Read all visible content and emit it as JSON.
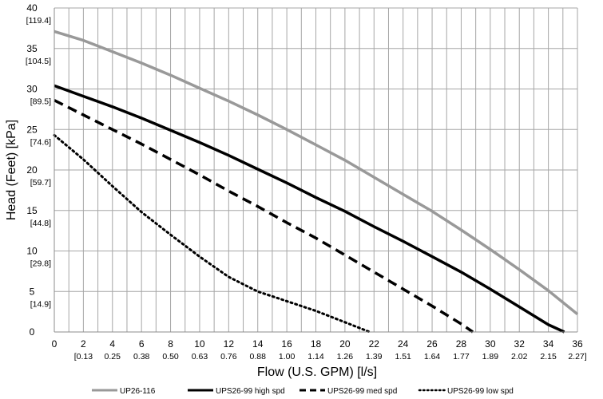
{
  "chart_data": {
    "type": "line",
    "xlabel": "Flow (U.S. GPM) [l/s]",
    "ylabel": "Head (Feet) [kPa]",
    "xlim": [
      0,
      36
    ],
    "ylim": [
      0,
      40
    ],
    "x_ticks": [
      0,
      2,
      4,
      6,
      8,
      10,
      12,
      14,
      16,
      18,
      20,
      22,
      24,
      26,
      28,
      30,
      32,
      34,
      36
    ],
    "x_secondary_labels": [
      "",
      "[0.13",
      "0.25",
      "0.38",
      "0.50",
      "0.63",
      "0.76",
      "0.88",
      "1.00",
      "1.14",
      "1.26",
      "1.39",
      "1.51",
      "1.64",
      "1.77",
      "1.89",
      "2.02",
      "2.15",
      "2.27]"
    ],
    "y_ticks": [
      0,
      5,
      10,
      15,
      20,
      25,
      30,
      35,
      40
    ],
    "y_secondary_labels": [
      "",
      "[14.9]",
      "[29.8]",
      "[44.8]",
      "[59.7]",
      "[74.6]",
      "[89.5]",
      "[104.5]",
      "[119.4]"
    ],
    "grid": true,
    "legend_position": "bottom",
    "series": [
      {
        "name": "UP26-116",
        "color": "#999999",
        "style": "solid",
        "x": [
          0,
          2,
          4,
          6,
          8,
          10,
          12,
          14,
          16,
          18,
          20,
          22,
          24,
          26,
          28,
          30,
          32,
          34,
          36
        ],
        "y": [
          37.1,
          36.0,
          34.6,
          33.2,
          31.7,
          30.1,
          28.5,
          26.8,
          25.0,
          23.1,
          21.2,
          19.1,
          17.0,
          14.9,
          12.6,
          10.2,
          7.7,
          5.1,
          2.2
        ]
      },
      {
        "name": "UPS26-99 high spd",
        "color": "#000000",
        "style": "solid",
        "x": [
          0,
          2,
          4,
          6,
          8,
          10,
          12,
          14,
          16,
          18,
          20,
          22,
          24,
          26,
          28,
          30,
          32,
          34,
          35.1
        ],
        "y": [
          30.4,
          29.1,
          27.8,
          26.4,
          24.9,
          23.4,
          21.8,
          20.1,
          18.4,
          16.6,
          14.9,
          13.0,
          11.2,
          9.3,
          7.4,
          5.3,
          3.1,
          0.9,
          0
        ]
      },
      {
        "name": "UPS26-99 med spd",
        "color": "#000000",
        "style": "dashed",
        "x": [
          0,
          2,
          4,
          6,
          8,
          10,
          12,
          14,
          16,
          18,
          20,
          22,
          24,
          26,
          28,
          28.8
        ],
        "y": [
          28.6,
          26.8,
          25.0,
          23.2,
          21.3,
          19.4,
          17.4,
          15.5,
          13.5,
          11.6,
          9.5,
          7.4,
          5.3,
          3.2,
          1.0,
          0
        ]
      },
      {
        "name": "UPS26-99 low spd",
        "color": "#000000",
        "style": "dotted",
        "x": [
          0,
          2,
          4,
          6,
          8,
          10,
          12,
          14,
          16,
          18,
          20,
          21.7
        ],
        "y": [
          24.3,
          21.3,
          18.0,
          14.8,
          12.0,
          9.3,
          6.8,
          5.0,
          3.8,
          2.6,
          1.2,
          0
        ]
      }
    ]
  }
}
